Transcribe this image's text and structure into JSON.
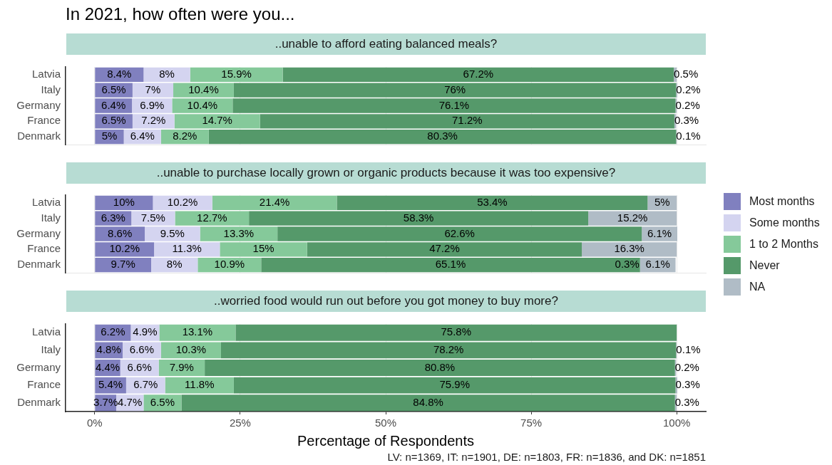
{
  "chart_data": [
    {
      "type": "bar",
      "orientation": "horizontal",
      "stacked": true,
      "title": "In 2021, how often were you...",
      "subtitle": "..unable to afford eating balanced meals?",
      "categories": [
        "Latvia",
        "Italy",
        "Germany",
        "France",
        "Denmark"
      ],
      "xlim": [
        -5,
        105
      ],
      "xticks": [
        {
          "value": 0,
          "label": null
        },
        {
          "value": 25,
          "label": null
        },
        {
          "value": 50,
          "label": null
        },
        {
          "value": 75,
          "label": null
        },
        {
          "value": 100,
          "label": null
        }
      ],
      "tick_labels": "y",
      "grid": "x",
      "legend": false,
      "series": [
        {
          "color": "#8080bf",
          "values": [
            8.4,
            6.5,
            6.4,
            6.5,
            5
          ],
          "value_labels": [
            "8.4%",
            "6.5%",
            "6.4%",
            "6.5%",
            "5%"
          ]
        },
        {
          "color": "#d4d4f0",
          "values": [
            8,
            7,
            6.9,
            7.2,
            6.4
          ],
          "value_labels": [
            "8%",
            "7%",
            "6.9%",
            "7.2%",
            "6.4%"
          ]
        },
        {
          "color": "#85c99a",
          "values": [
            15.9,
            10.4,
            10.4,
            14.7,
            8.2
          ],
          "value_labels": [
            "15.9%",
            "10.4%",
            "10.4%",
            "14.7%",
            "8.2%"
          ]
        },
        {
          "color": "#55996a",
          "values": [
            67.2,
            76,
            76.1,
            71.2,
            80.3
          ],
          "value_labels": [
            "67.2%",
            "76%",
            "76.1%",
            "71.2%",
            "80.3%"
          ]
        },
        {
          "color": "#b0bcc6",
          "values": [
            0.5,
            0.2,
            0.2,
            0.3,
            0.1
          ],
          "value_labels": [
            "0.5%",
            "0.2%",
            "0.2%",
            "0.3%",
            "0.1%"
          ]
        }
      ]
    },
    {
      "type": "bar",
      "orientation": "horizontal",
      "stacked": true,
      "subtitle": "..unable to purchase locally grown or organic products because it was too expensive?",
      "categories": [
        "Latvia",
        "Italy",
        "Germany",
        "France",
        "Denmark"
      ],
      "xlim": [
        -5,
        105
      ],
      "xticks": [
        {
          "value": 0,
          "label": null
        },
        {
          "value": 25,
          "label": null
        },
        {
          "value": 50,
          "label": null
        },
        {
          "value": 75,
          "label": null
        },
        {
          "value": 100,
          "label": null
        }
      ],
      "tick_labels": "y",
      "grid": "x",
      "legend": "right",
      "annotations": [
        "0.3%"
      ],
      "series": [
        {
          "name": "Most months",
          "color": "#8080bf",
          "values": [
            10,
            6.3,
            8.6,
            10.2,
            9.7
          ],
          "value_labels": [
            "10%",
            "6.3%",
            "8.6%",
            "10.2%",
            "9.7%"
          ]
        },
        {
          "name": "Some months",
          "color": "#d4d4f0",
          "values": [
            10.2,
            7.5,
            9.5,
            11.3,
            8
          ],
          "value_labels": [
            "10.2%",
            "7.5%",
            "9.5%",
            "11.3%",
            "8%"
          ]
        },
        {
          "name": "1 to 2 Months",
          "color": "#85c99a",
          "values": [
            21.4,
            12.7,
            13.3,
            15,
            10.9
          ],
          "value_labels": [
            "21.4%",
            "12.7%",
            "13.3%",
            "15%",
            "10.9%"
          ]
        },
        {
          "name": "Never",
          "color": "#55996a",
          "values": [
            53.4,
            58.3,
            62.6,
            47.2,
            65.1
          ],
          "value_labels": [
            "53.4%",
            "58.3%",
            "62.6%",
            "47.2%",
            "65.1%"
          ]
        },
        {
          "name": "NA",
          "color": "#b0bcc6",
          "values": [
            5,
            15.2,
            6.1,
            16.3,
            6.1
          ],
          "value_labels": [
            "5%",
            "15.2%",
            "6.1%",
            "16.3%",
            "6.1%"
          ]
        }
      ]
    },
    {
      "type": "bar",
      "orientation": "horizontal",
      "stacked": true,
      "subtitle": "..worried food would run out before you got money to buy more?",
      "xlabel": "Percentage of Respondents",
      "categories": [
        "Latvia",
        "Italy",
        "Germany",
        "France",
        "Denmark"
      ],
      "xlim": [
        -5,
        105
      ],
      "xticks": [
        {
          "value": 0,
          "label": "0%"
        },
        {
          "value": 25,
          "label": "25%"
        },
        {
          "value": 50,
          "label": "50%"
        },
        {
          "value": 75,
          "label": "75%"
        },
        {
          "value": 100,
          "label": "100%"
        }
      ],
      "grid": "x",
      "legend": false,
      "annotations": [
        "LV: n=1369, IT: n=1901, DE: n=1803, FR: n=1836, and DK: n=1851"
      ],
      "series": [
        {
          "color": "#8080bf",
          "values": [
            6.2,
            4.8,
            4.4,
            5.4,
            3.7
          ],
          "value_labels": [
            "6.2%",
            "4.8%",
            "4.4%",
            "5.4%",
            "3.7%"
          ]
        },
        {
          "color": "#d4d4f0",
          "values": [
            4.9,
            6.6,
            6.6,
            6.7,
            4.7
          ],
          "value_labels": [
            "4.9%",
            "6.6%",
            "6.6%",
            "6.7%",
            "4.7%"
          ]
        },
        {
          "color": "#85c99a",
          "values": [
            13.1,
            10.3,
            7.9,
            11.8,
            6.5
          ],
          "value_labels": [
            "13.1%",
            "10.3%",
            "7.9%",
            "11.8%",
            "6.5%"
          ]
        },
        {
          "color": "#55996a",
          "values": [
            75.8,
            78.2,
            80.8,
            75.9,
            84.8
          ],
          "value_labels": [
            "75.8%",
            "78.2%",
            "80.8%",
            "75.9%",
            "84.8%"
          ]
        },
        {
          "color": "#b0bcc6",
          "values": [
            0,
            0.1,
            0.2,
            0.3,
            0.3
          ],
          "value_labels": [
            null,
            "0.1%",
            "0.2%",
            "0.3%",
            "0.3%"
          ]
        }
      ]
    }
  ]
}
